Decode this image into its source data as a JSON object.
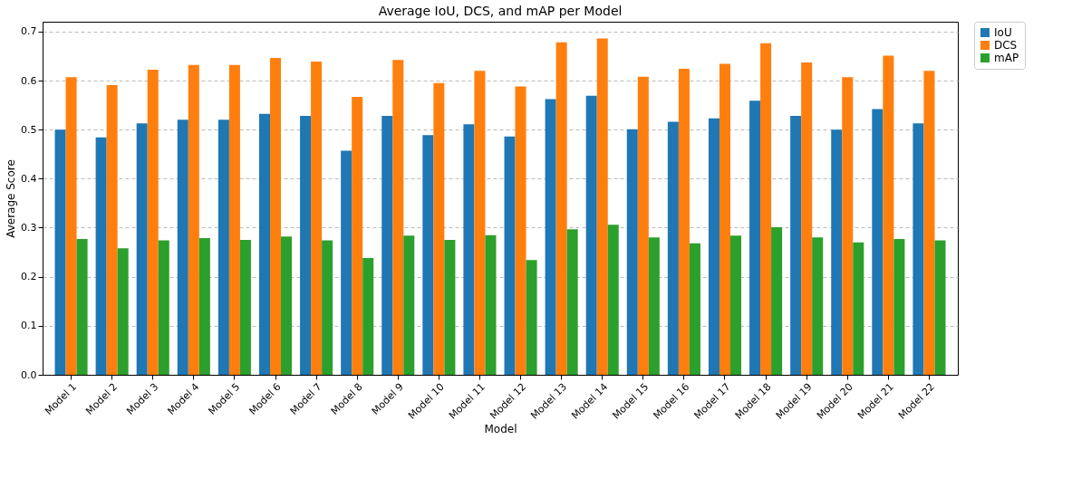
{
  "chart_data": {
    "type": "bar",
    "title": "Average IoU, DCS, and mAP per Model",
    "xlabel": "Model",
    "ylabel": "Average Score",
    "categories": [
      "Model 1",
      "Model 2",
      "Model 3",
      "Model 4",
      "Model 5",
      "Model 6",
      "Model 7",
      "Model 8",
      "Model 9",
      "Model 10",
      "Model 11",
      "Model 12",
      "Model 13",
      "Model 14",
      "Model 15",
      "Model 16",
      "Model 17",
      "Model 18",
      "Model 19",
      "Model 20",
      "Model 21",
      "Model 22"
    ],
    "series": [
      {
        "name": "IoU",
        "color": "#1f77b4",
        "values": [
          0.5,
          0.484,
          0.513,
          0.52,
          0.52,
          0.532,
          0.528,
          0.457,
          0.528,
          0.489,
          0.511,
          0.486,
          0.562,
          0.569,
          0.501,
          0.516,
          0.523,
          0.559,
          0.528,
          0.5,
          0.542,
          0.513
        ]
      },
      {
        "name": "DCS",
        "color": "#ff7f0e",
        "values": [
          0.607,
          0.591,
          0.622,
          0.632,
          0.632,
          0.646,
          0.639,
          0.567,
          0.642,
          0.595,
          0.62,
          0.588,
          0.678,
          0.686,
          0.608,
          0.624,
          0.634,
          0.676,
          0.637,
          0.607,
          0.651,
          0.62
        ]
      },
      {
        "name": "mAP",
        "color": "#2ca02c",
        "values": [
          0.277,
          0.258,
          0.274,
          0.279,
          0.275,
          0.282,
          0.274,
          0.238,
          0.284,
          0.275,
          0.285,
          0.234,
          0.297,
          0.306,
          0.28,
          0.268,
          0.284,
          0.301,
          0.28,
          0.27,
          0.277,
          0.274
        ]
      }
    ],
    "ylim": [
      0,
      0.72
    ],
    "yticks": [
      {
        "value": 0,
        "label": "0.0"
      },
      {
        "value": 0.1,
        "label": "0.1"
      },
      {
        "value": 0.2,
        "label": "0.2"
      },
      {
        "value": 0.3,
        "label": "0.3"
      },
      {
        "value": 0.4,
        "label": "0.4"
      },
      {
        "value": 0.5,
        "label": "0.5"
      },
      {
        "value": 0.6,
        "label": "0.6"
      },
      {
        "value": 0.7,
        "label": "0.7"
      }
    ],
    "grid": "y",
    "legend": "top right"
  }
}
